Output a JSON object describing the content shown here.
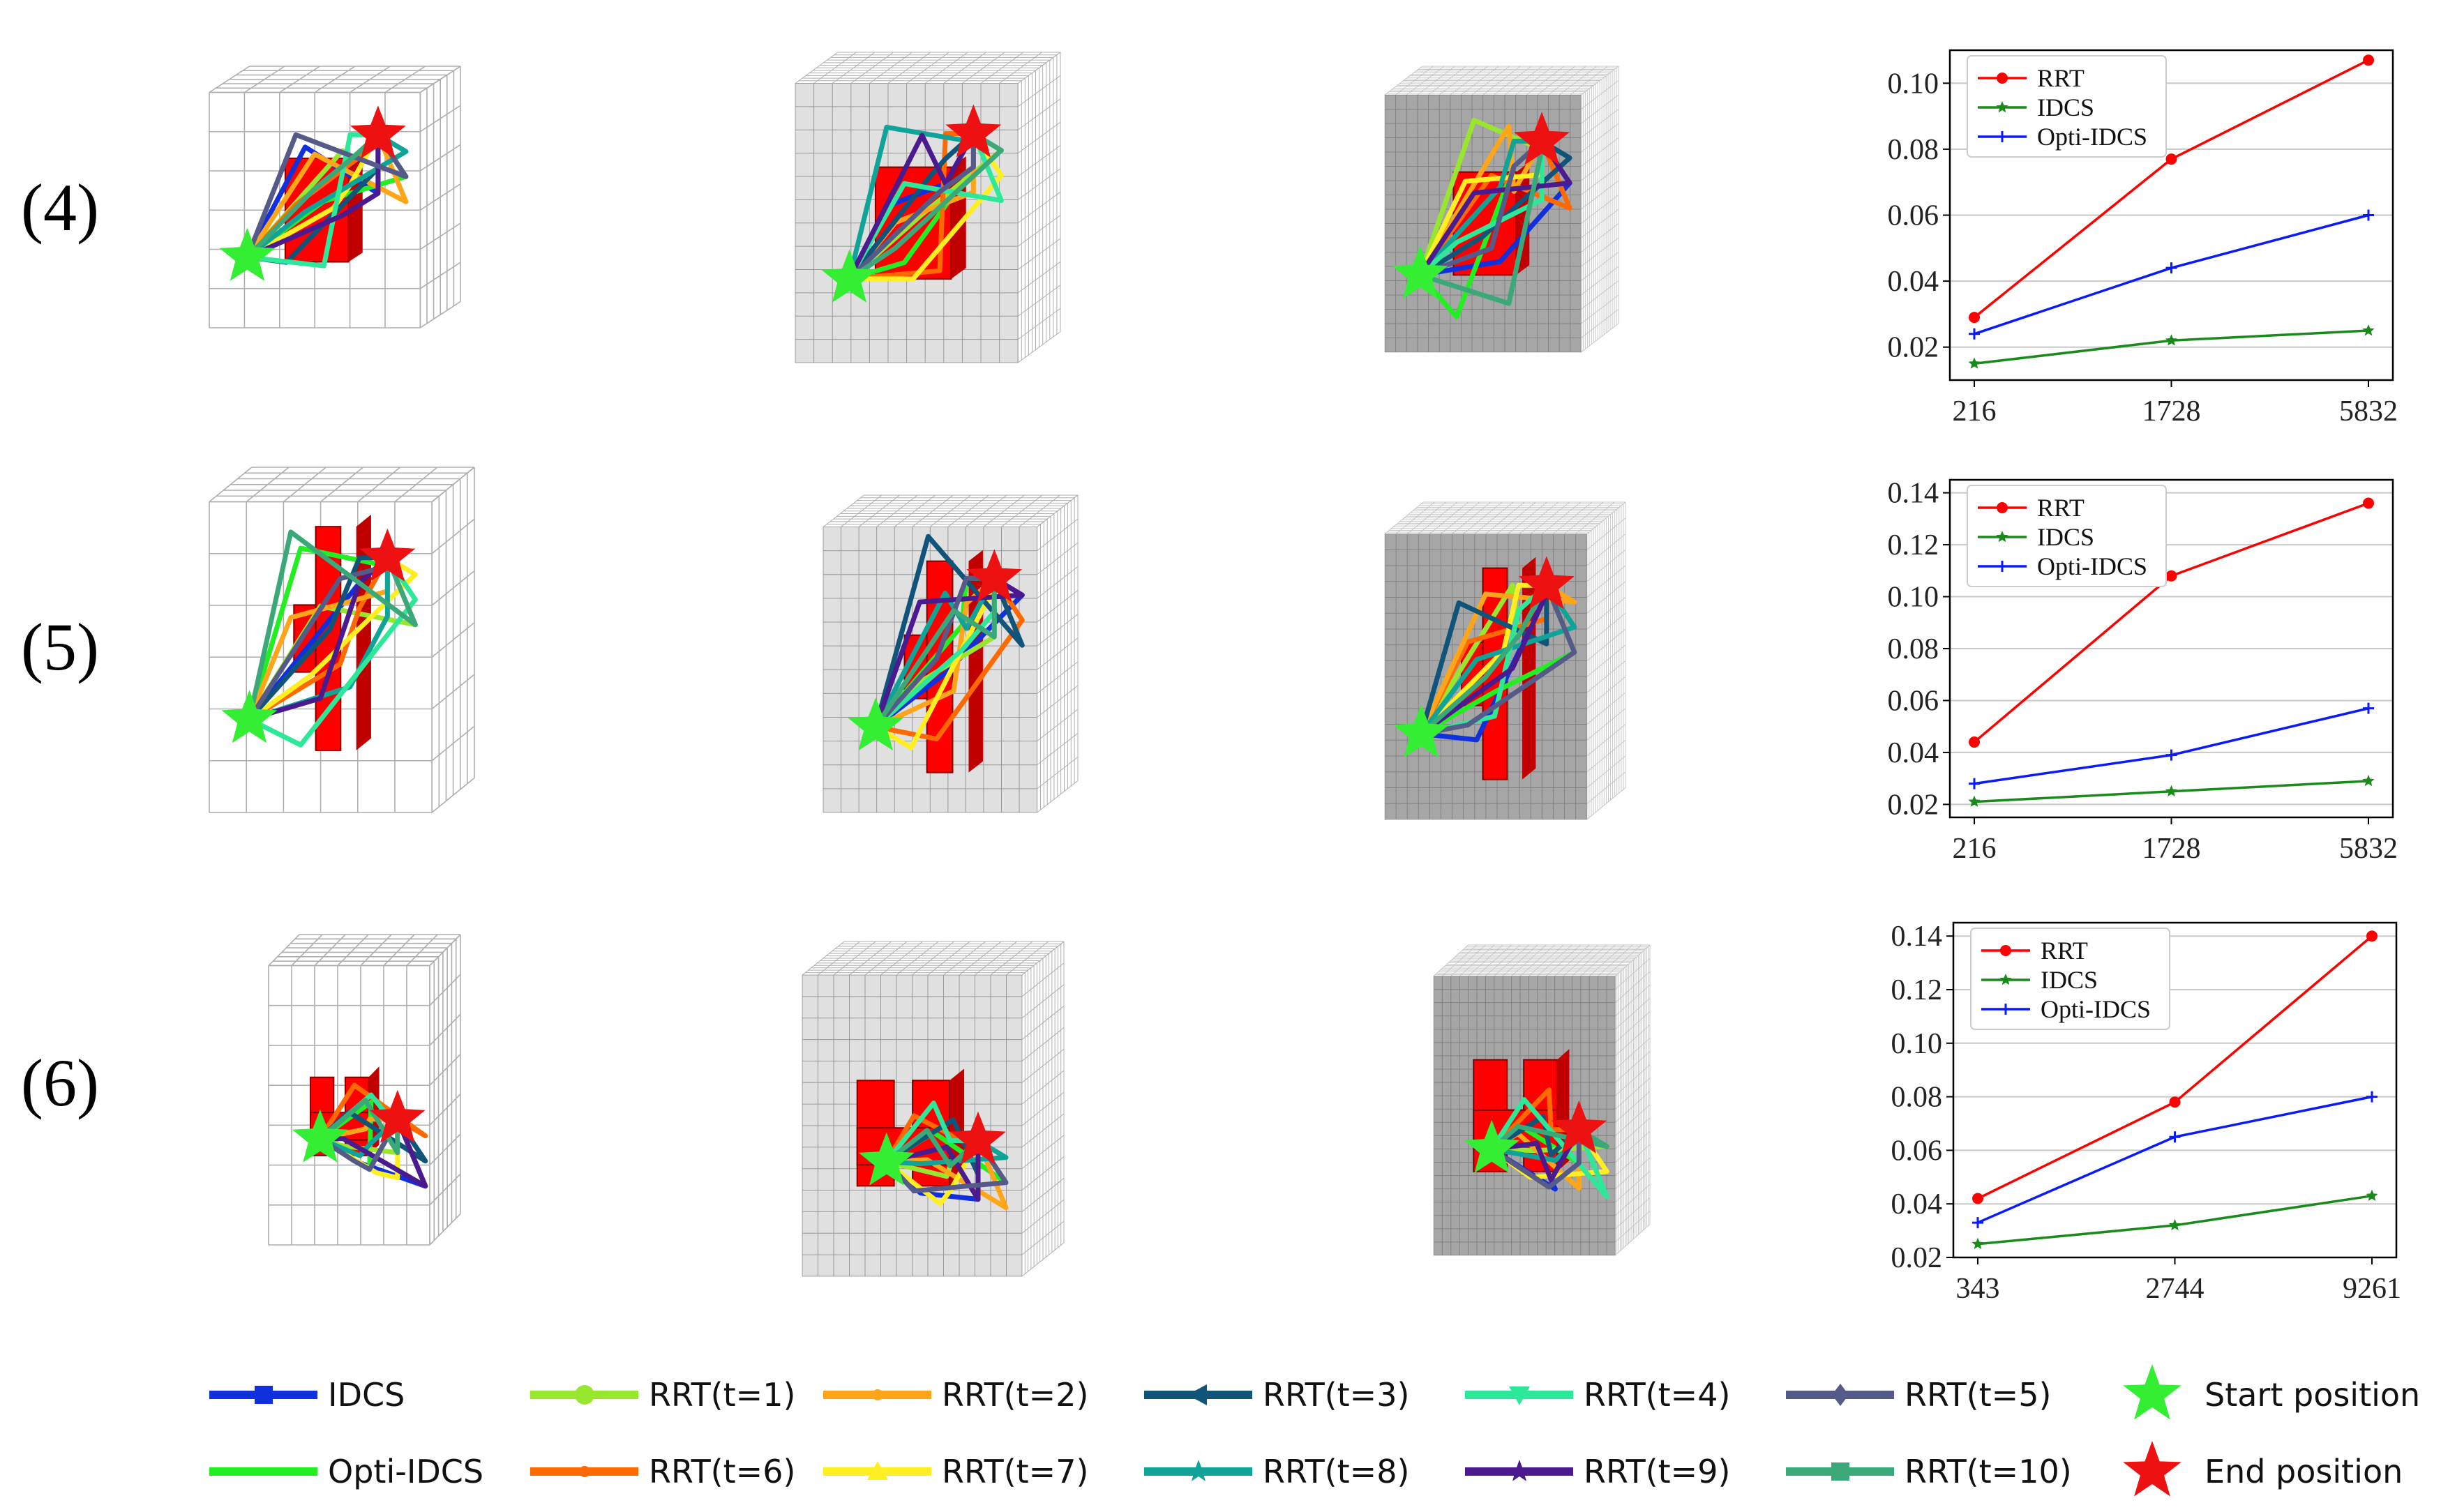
{
  "row_labels": [
    "(4)",
    "(5)",
    "(6)"
  ],
  "colors": {
    "RRT": "#ff0000",
    "IDCS": "#1a8a1a",
    "Opti-IDCS": "#0a1aff",
    "obstacle": "#ff0000",
    "grid": "#9a9a9a",
    "start": "#33ee33",
    "end": "#ee1111"
  },
  "path_colors": [
    "#1030dd",
    "#22ee22",
    "#99e62e",
    "#ff6a00",
    "#ffa51a",
    "#ffee22",
    "#10547a",
    "#10a398",
    "#2ee89a",
    "#4a1a8e",
    "#555a88",
    "#3aa878"
  ],
  "chart_data": [
    {
      "type": "line",
      "title": "",
      "x": [
        "216",
        "1728",
        "5832"
      ],
      "ylim": [
        0.01,
        0.11
      ],
      "yticks": [
        "0.02",
        "0.04",
        "0.06",
        "0.08",
        "0.10"
      ],
      "yticks_num": [
        0.02,
        0.04,
        0.06,
        0.08,
        0.1
      ],
      "grid": true,
      "legend": "top-left",
      "series": [
        {
          "name": "RRT",
          "values": [
            0.029,
            0.077,
            0.107
          ]
        },
        {
          "name": "IDCS",
          "values": [
            0.015,
            0.022,
            0.025
          ]
        },
        {
          "name": "Opti-IDCS",
          "values": [
            0.024,
            0.044,
            0.06
          ]
        }
      ]
    },
    {
      "type": "line",
      "title": "",
      "x": [
        "216",
        "1728",
        "5832"
      ],
      "ylim": [
        0.015,
        0.145
      ],
      "yticks": [
        "0.02",
        "0.04",
        "0.06",
        "0.08",
        "0.10",
        "0.12",
        "0.14"
      ],
      "yticks_num": [
        0.02,
        0.04,
        0.06,
        0.08,
        0.1,
        0.12,
        0.14
      ],
      "grid": true,
      "legend": "top-left",
      "series": [
        {
          "name": "RRT",
          "values": [
            0.044,
            0.108,
            0.136
          ]
        },
        {
          "name": "IDCS",
          "values": [
            0.021,
            0.025,
            0.029
          ]
        },
        {
          "name": "Opti-IDCS",
          "values": [
            0.028,
            0.039,
            0.057
          ]
        }
      ]
    },
    {
      "type": "line",
      "title": "",
      "x": [
        "343",
        "2744",
        "9261"
      ],
      "ylim": [
        0.02,
        0.145
      ],
      "yticks": [
        "0.02",
        "0.04",
        "0.06",
        "0.08",
        "0.10",
        "0.12",
        "0.14"
      ],
      "yticks_num": [
        0.02,
        0.04,
        0.06,
        0.08,
        0.1,
        0.12,
        0.14
      ],
      "grid": true,
      "legend": "top-left",
      "series": [
        {
          "name": "RRT",
          "values": [
            0.042,
            0.078,
            0.14
          ]
        },
        {
          "name": "IDCS",
          "values": [
            0.025,
            0.032,
            0.043
          ]
        },
        {
          "name": "Opti-IDCS",
          "values": [
            0.033,
            0.065,
            0.08
          ]
        }
      ]
    }
  ],
  "bottom_legend": [
    {
      "label": "IDCS",
      "color": "#1030dd",
      "marker": "square"
    },
    {
      "label": "RRT(t=1)",
      "color": "#99e62e",
      "marker": "circle"
    },
    {
      "label": "RRT(t=2)",
      "color": "#ffa51a",
      "marker": "dot"
    },
    {
      "label": "RRT(t=3)",
      "color": "#10547a",
      "marker": "tri-left"
    },
    {
      "label": "RRT(t=4)",
      "color": "#2ee89a",
      "marker": "tri-down"
    },
    {
      "label": "RRT(t=5)",
      "color": "#555a88",
      "marker": "diamond"
    },
    {
      "label": "Start position",
      "color": "#33ee33",
      "marker": "star"
    },
    {
      "label": "Opti-IDCS",
      "color": "#22ee22",
      "marker": "line"
    },
    {
      "label": "RRT(t=6)",
      "color": "#ff6a00",
      "marker": "dot"
    },
    {
      "label": "RRT(t=7)",
      "color": "#ffee22",
      "marker": "tri-up"
    },
    {
      "label": "RRT(t=8)",
      "color": "#10a398",
      "marker": "star-small"
    },
    {
      "label": "RRT(t=9)",
      "color": "#4a1a8e",
      "marker": "star-small"
    },
    {
      "label": "RRT(t=10)",
      "color": "#3aa878",
      "marker": "square"
    },
    {
      "label": "End position",
      "color": "#ee1111",
      "marker": "star"
    }
  ]
}
